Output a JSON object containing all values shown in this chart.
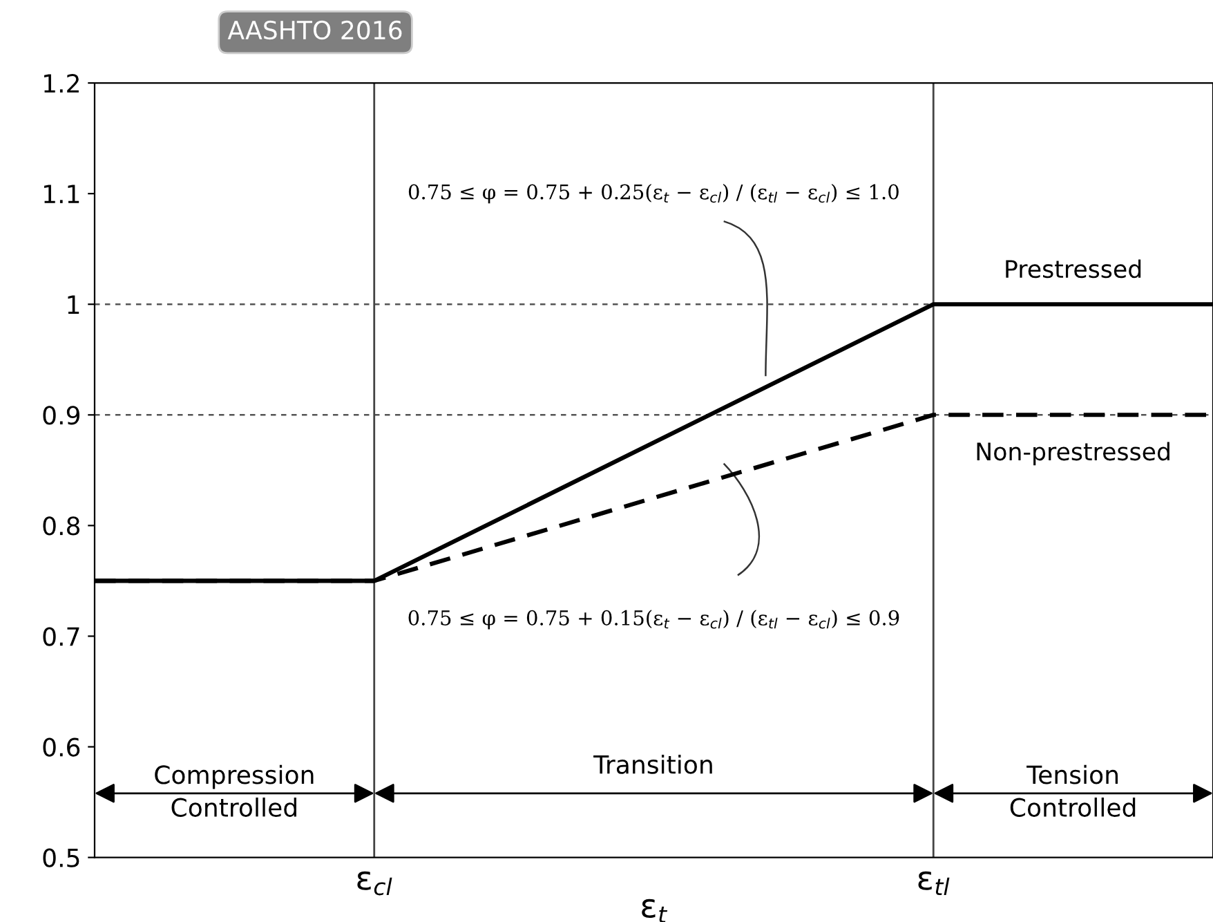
{
  "chart_data": {
    "type": "line",
    "title": "AASHTO 2016",
    "xlabel": "ε$_{t}$",
    "categories": [
      null,
      "ε$_{cl}$",
      null,
      "ε$_{tl}$",
      null
    ],
    "series": [
      {
        "name": "Prestressed",
        "color": "#000000",
        "line_style": "solid",
        "values": [
          0.75,
          0.75,
          0.875,
          1.0,
          1.0
        ]
      },
      {
        "name": "Non-prestressed",
        "color": "#000000",
        "line_style": "dashed",
        "values": [
          0.75,
          0.75,
          0.825,
          0.9,
          0.9
        ]
      }
    ],
    "ylim": [
      0.5,
      1.2
    ],
    "yticks": [
      0.5,
      0.6,
      0.7,
      0.8,
      0.9,
      1,
      1.1,
      1.2
    ],
    "ref_lines": [
      {
        "axis": "y",
        "value": 1.0,
        "line_style": "dotted",
        "color": "#555555"
      },
      {
        "axis": "y",
        "value": 0.9,
        "line_style": "dotted",
        "color": "#555555"
      },
      {
        "axis": "x",
        "value": "ε$_{cl}$",
        "line_style": "solid",
        "color": "#444444"
      },
      {
        "axis": "x",
        "value": "ε$_{tl}$",
        "line_style": "solid",
        "color": "#444444"
      }
    ],
    "annotations": [
      "0.75 ≤ φ = 0.75 + 0.25(ε$_{t}$ − ε$_{cl}$) / (ε$_{tl}$ − ε$_{cl}$) ≤ 1.0",
      "0.75 ≤ φ = 0.75 + 0.15(ε$_{t}$ − ε$_{cl}$) / (ε$_{tl}$ − ε$_{cl}$) ≤ 0.9",
      "Compression\nControlled",
      "Transition",
      "Tension\nControlled"
    ],
    "grid": false,
    "legend": false,
    "marker": "none"
  }
}
